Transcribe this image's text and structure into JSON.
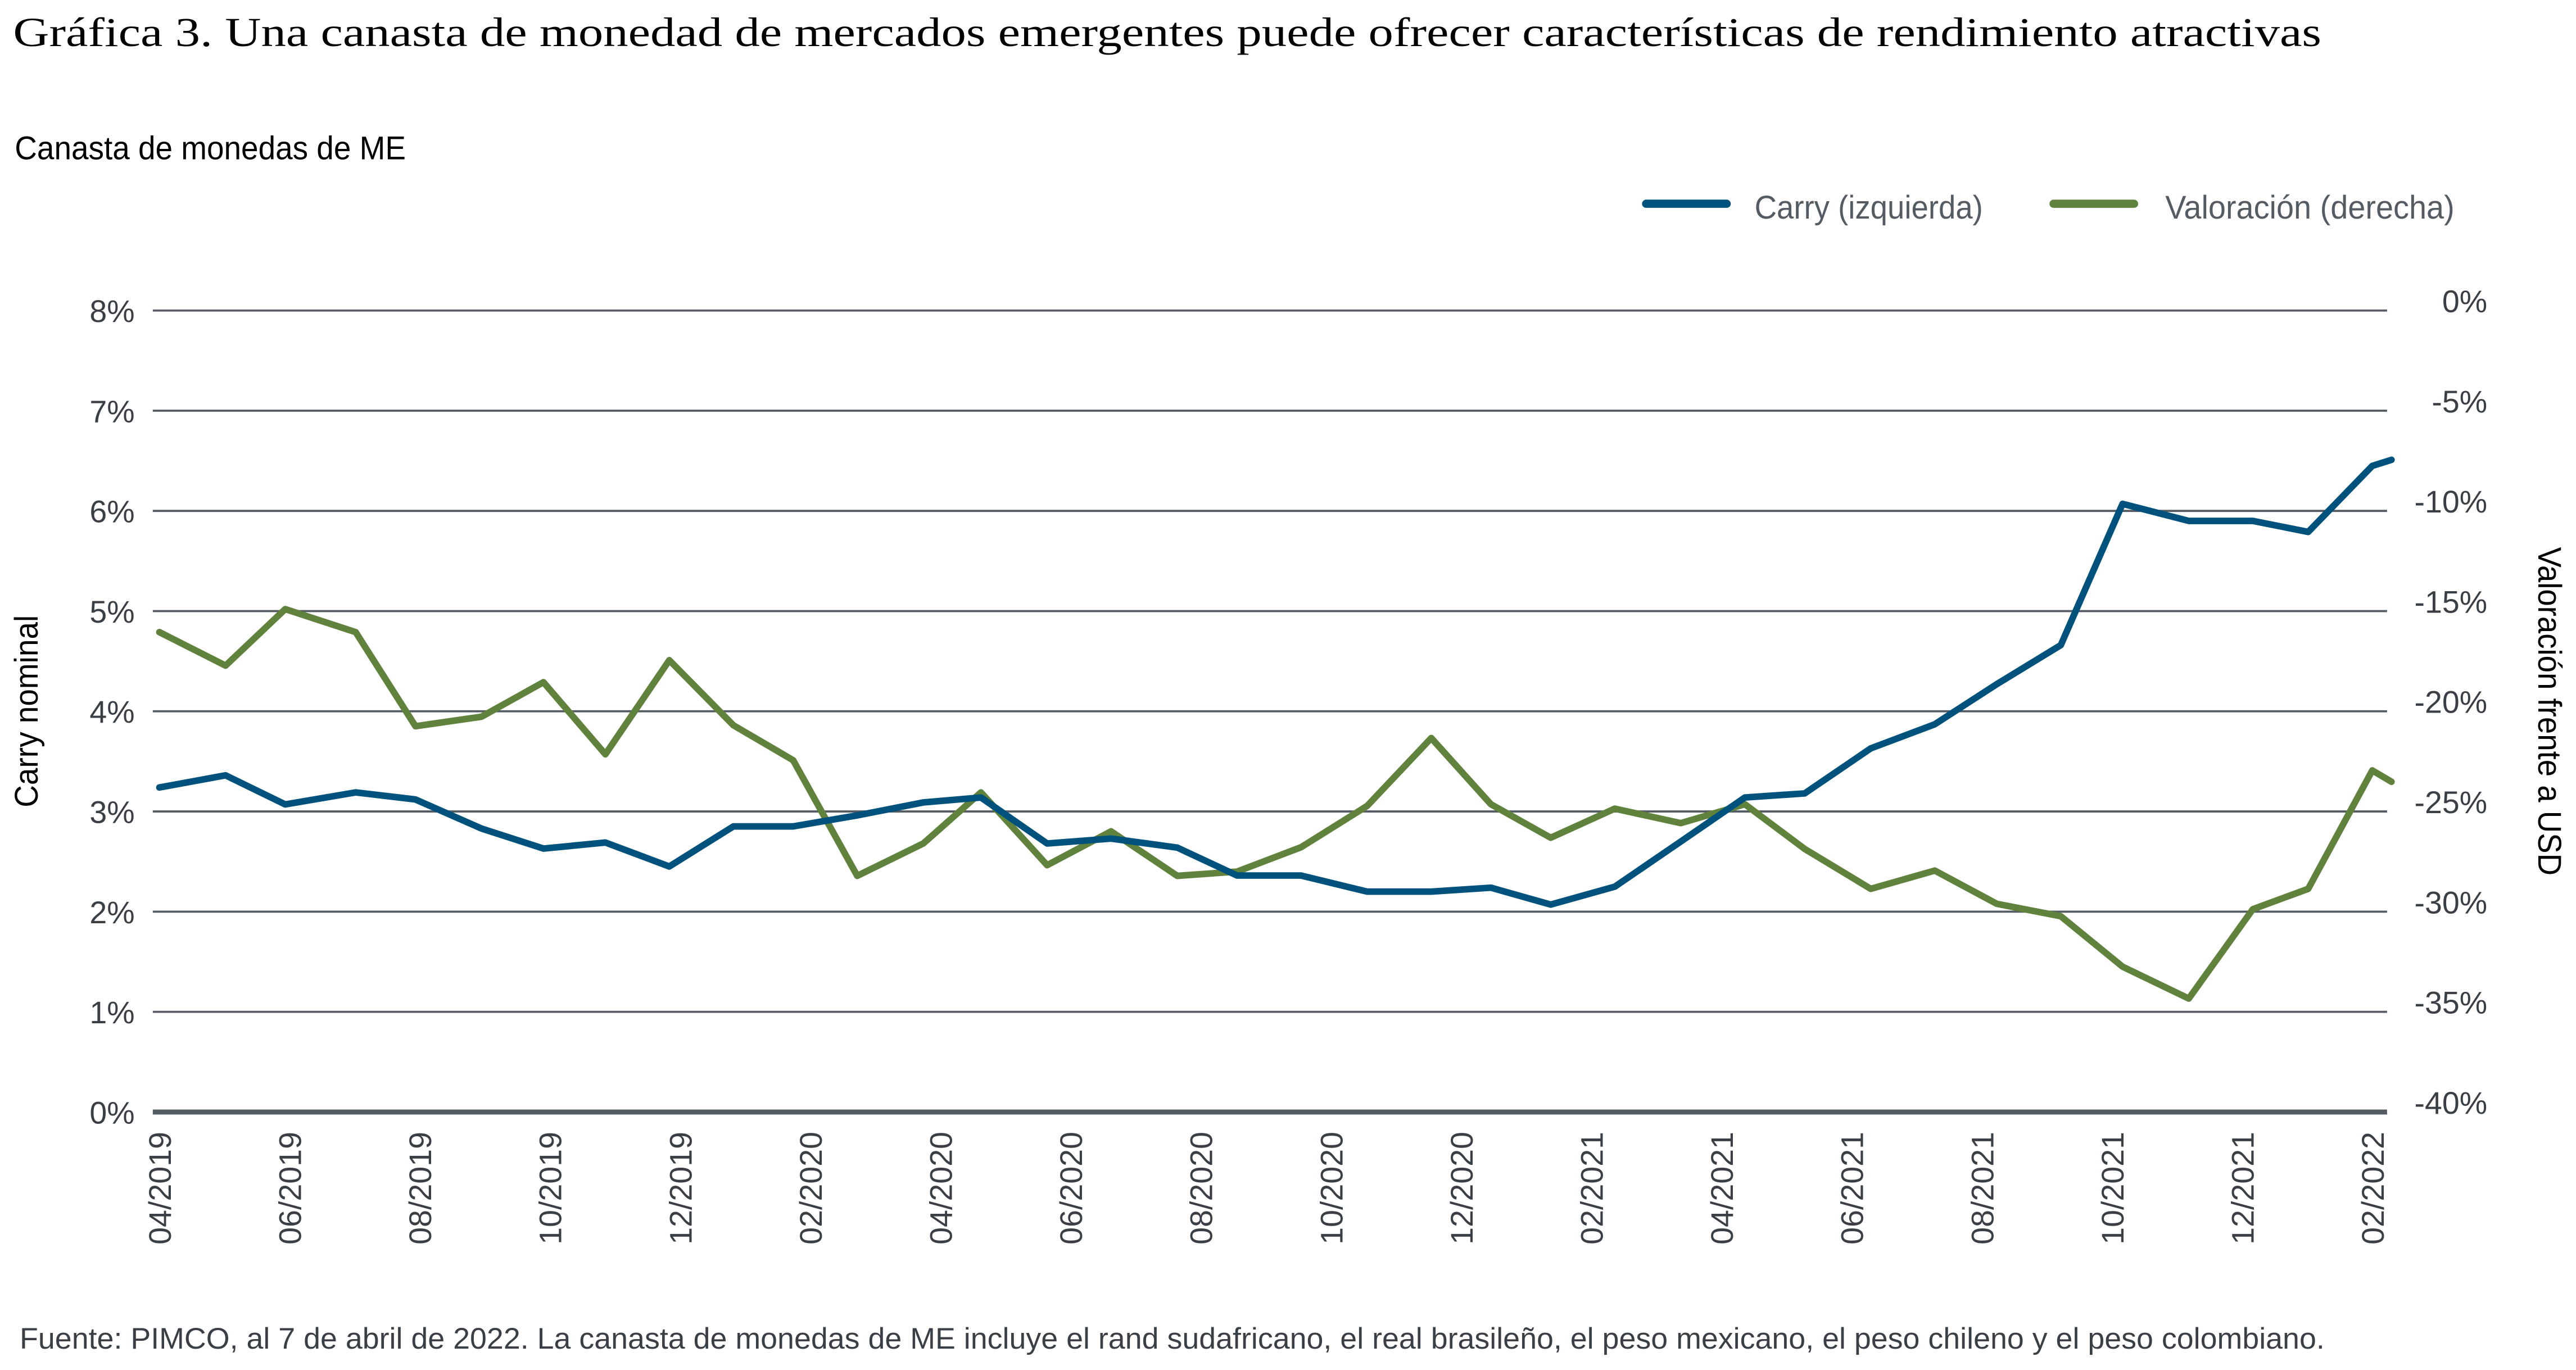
{
  "title": "Gráfica 3. Una canasta de monedad de mercados emergentes puede ofrecer características de rendimiento atractivas",
  "subtitle": "Canasta de monedas de ME",
  "footnote": "Fuente: PIMCO, al 7 de abril de 2022. La canasta de monedas de ME incluye el rand sudafricano, el real brasileño, el peso mexicano, el peso chileno y el peso colombiano.",
  "chart_data": {
    "type": "line",
    "title": "",
    "ylabel_left": "Carry nominal",
    "ylabel_right": "Valoración frente a USD",
    "ylim_left": [
      0,
      8
    ],
    "ylim_right": [
      -40,
      0
    ],
    "yticks_left": [
      "0%",
      "1%",
      "2%",
      "3%",
      "4%",
      "5%",
      "6%",
      "7%",
      "8%"
    ],
    "yticks_right": [
      "-40%",
      "-35%",
      "-30%",
      "-25%",
      "-20%",
      "-15%",
      "-10%",
      "-5%",
      "0%"
    ],
    "xticks": [
      "04/2019",
      "06/2019",
      "08/2019",
      "10/2019",
      "12/2019",
      "02/2020",
      "04/2020",
      "06/2020",
      "08/2020",
      "10/2020",
      "12/2020",
      "02/2021",
      "04/2021",
      "06/2021",
      "08/2021",
      "10/2021",
      "12/2021",
      "02/2022"
    ],
    "grid": true,
    "legend_position": "top-right",
    "x": [
      "2019-04-01",
      "2019-05-02",
      "2019-05-30",
      "2019-07-02",
      "2019-07-30",
      "2019-08-30",
      "2019-09-28",
      "2019-10-27",
      "2019-11-26",
      "2019-12-26",
      "2020-01-23",
      "2020-02-22",
      "2020-03-24",
      "2020-04-20",
      "2020-05-21",
      "2020-06-20",
      "2020-07-21",
      "2020-08-18",
      "2020-09-17",
      "2020-10-18",
      "2020-11-17",
      "2020-12-15",
      "2021-01-12",
      "2021-02-11",
      "2021-03-14",
      "2021-04-13",
      "2021-05-11",
      "2021-06-11",
      "2021-07-11",
      "2021-08-09",
      "2021-09-08",
      "2021-10-07",
      "2021-11-07",
      "2021-12-07",
      "2022-01-02",
      "2022-02-01",
      "2022-02-10"
    ],
    "series": [
      {
        "name": "Carry (izquierda)",
        "axis": "left",
        "color": "#00527d",
        "values": [
          3.24,
          3.36,
          3.07,
          3.19,
          3.12,
          2.83,
          2.63,
          2.69,
          2.45,
          2.85,
          2.85,
          2.96,
          3.09,
          3.14,
          2.68,
          2.73,
          2.64,
          2.36,
          2.36,
          2.2,
          2.2,
          2.24,
          2.07,
          2.25,
          2.7,
          3.14,
          3.18,
          3.63,
          3.87,
          4.27,
          4.66,
          6.07,
          5.9,
          5.9,
          5.79,
          6.45,
          6.51
        ]
      },
      {
        "name": "Valoración (derecha)",
        "axis": "right",
        "color": "#61823c",
        "values": [
          -16.05,
          -17.72,
          -14.9,
          -16.05,
          -20.75,
          -20.27,
          -18.55,
          -22.15,
          -17.45,
          -20.7,
          -22.44,
          -28.21,
          -26.6,
          -24.05,
          -27.68,
          -25.99,
          -28.21,
          -28.0,
          -26.79,
          -24.72,
          -21.34,
          -24.64,
          -26.31,
          -24.86,
          -25.58,
          -24.64,
          -26.87,
          -28.86,
          -27.95,
          -29.61,
          -30.23,
          -32.75,
          -34.34,
          -29.88,
          -28.86,
          -22.95,
          -23.52
        ]
      }
    ]
  }
}
